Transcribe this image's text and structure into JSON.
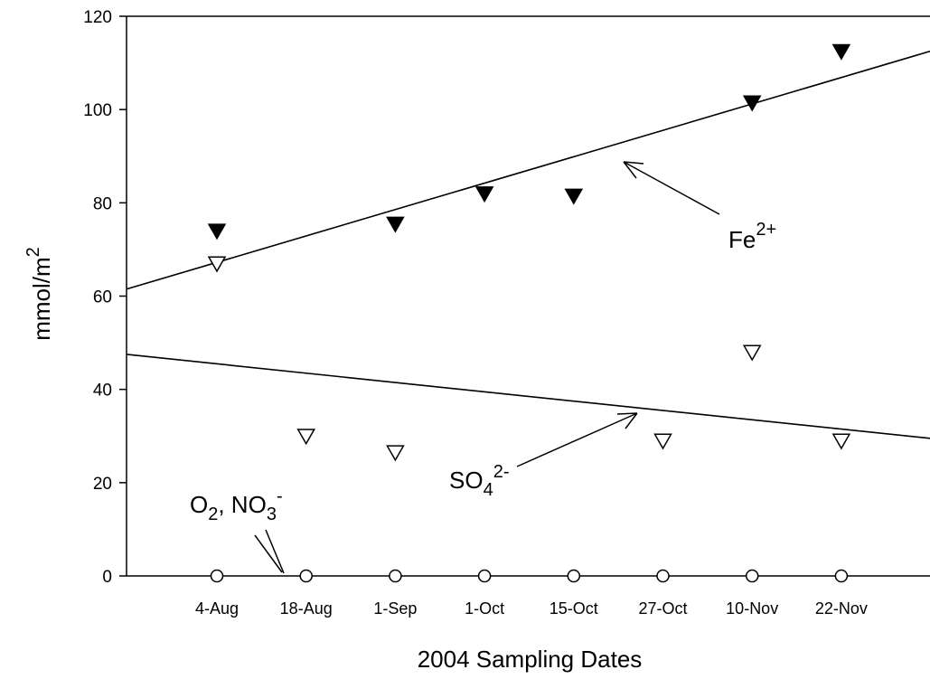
{
  "chart_data": {
    "type": "scatter",
    "title": "",
    "xlabel": "2004 Sampling Dates",
    "ylabel": "mmol/m",
    "ylabel_sup": "2",
    "ylim": [
      0,
      120
    ],
    "yticks": [
      0,
      20,
      40,
      60,
      80,
      100,
      120
    ],
    "categories": [
      "4-Aug",
      "18-Aug",
      "1-Sep",
      "1-Oct",
      "15-Oct",
      "27-Oct",
      "10-Nov",
      "22-Nov"
    ],
    "grid": false,
    "series": [
      {
        "marker": "filled-down-triangle",
        "values": [
          74,
          null,
          75.5,
          82,
          81.5,
          null,
          101.5,
          112.5
        ]
      },
      {
        "marker": "open-down-triangle",
        "values": [
          67,
          30,
          26.5,
          null,
          null,
          29,
          48,
          29
        ]
      },
      {
        "marker": "open-circle",
        "values": [
          0,
          0,
          0,
          0,
          0,
          0,
          0,
          0
        ]
      }
    ],
    "trendlines": [
      {
        "series_index": 0,
        "start": 61.5,
        "end": 112.5
      },
      {
        "series_index": 1,
        "start": 47.5,
        "end": 29.5
      }
    ],
    "annotations": [
      {
        "base": "Fe",
        "sup": "2+"
      },
      {
        "base": "SO",
        "sub": "4",
        "sup": "2-"
      },
      {
        "base": "O",
        "sub": "2",
        "mid": ", NO",
        "sub2": "3",
        "sup": "-"
      }
    ]
  }
}
